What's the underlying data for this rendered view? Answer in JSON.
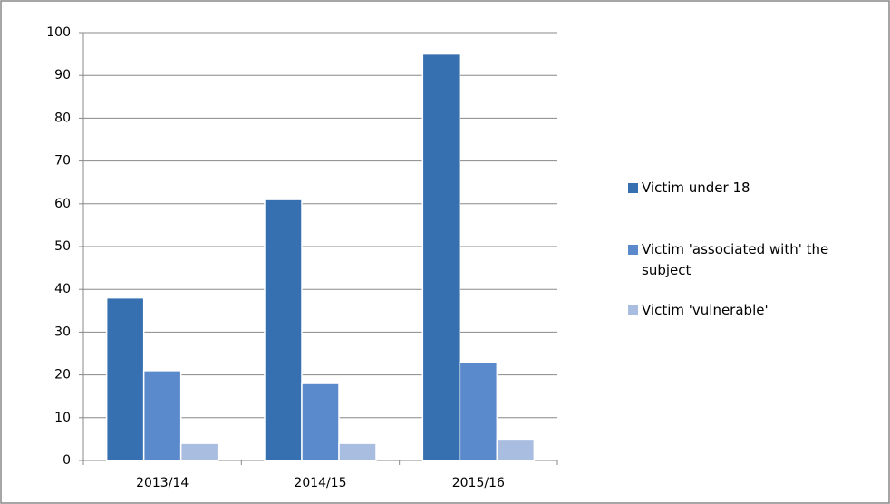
{
  "chart_data": {
    "type": "bar",
    "categories": [
      "2013/14",
      "2014/15",
      "2015/16"
    ],
    "series": [
      {
        "name": "Victim under 18",
        "color": "#3670b0",
        "values": [
          38,
          61,
          95
        ]
      },
      {
        "name": "Victim 'associated with' the subject",
        "color": "#5a8acb",
        "values": [
          21,
          18,
          23
        ]
      },
      {
        "name": "Victim 'vulnerable'",
        "color": "#a9bde0",
        "values": [
          4,
          4,
          5
        ]
      }
    ],
    "ylim": [
      0,
      100
    ],
    "yticks": [
      0,
      10,
      20,
      30,
      40,
      50,
      60,
      70,
      80,
      90,
      100
    ],
    "grid": true,
    "legend": "right"
  }
}
